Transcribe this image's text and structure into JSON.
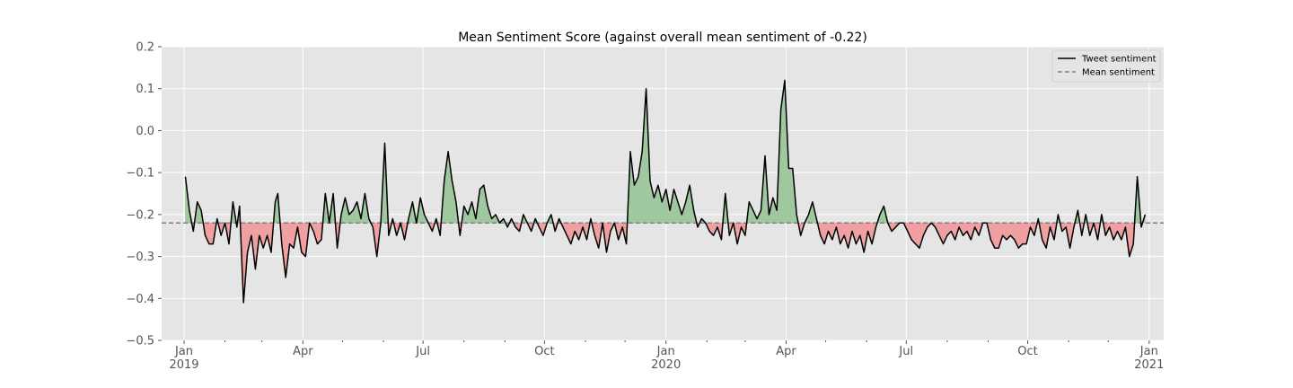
{
  "chart_data": {
    "type": "line",
    "title": "Mean Sentiment Score (against overall mean sentiment of -0.22)",
    "xlabel": "",
    "ylabel": "",
    "mean": -0.22,
    "xlim": [
      "2018-12-15",
      "2021-01-12"
    ],
    "ylim": [
      -0.5,
      0.2
    ],
    "grid": true,
    "legend_placement": "top-right",
    "colors": {
      "line": "#000000",
      "mean_line": "#808080",
      "above_fill": "#9fc89f",
      "below_fill": "#f0a0a0",
      "plot_bg": "#e5e5e5"
    },
    "y_ticks": [
      {
        "value": 0.2,
        "label": "0.2"
      },
      {
        "value": 0.1,
        "label": "0.1"
      },
      {
        "value": 0.0,
        "label": "0.0"
      },
      {
        "value": -0.1,
        "label": "−0.1"
      },
      {
        "value": -0.2,
        "label": "−0.2"
      },
      {
        "value": -0.3,
        "label": "−0.3"
      },
      {
        "value": -0.4,
        "label": "−0.4"
      },
      {
        "value": -0.5,
        "label": "−0.5"
      }
    ],
    "x_ticks": [
      {
        "date": "2019-01-01",
        "label": "Jan",
        "sublabel": "2019"
      },
      {
        "date": "2019-04-01",
        "label": "Apr",
        "sublabel": ""
      },
      {
        "date": "2019-07-01",
        "label": "Jul",
        "sublabel": ""
      },
      {
        "date": "2019-10-01",
        "label": "Oct",
        "sublabel": ""
      },
      {
        "date": "2020-01-01",
        "label": "Jan",
        "sublabel": "2020"
      },
      {
        "date": "2020-04-01",
        "label": "Apr",
        "sublabel": ""
      },
      {
        "date": "2020-07-01",
        "label": "Jul",
        "sublabel": ""
      },
      {
        "date": "2020-10-01",
        "label": "Oct",
        "sublabel": ""
      },
      {
        "date": "2021-01-01",
        "label": "Jan",
        "sublabel": "2021"
      }
    ],
    "x_minor_ticks": [
      "2018-12-01",
      "2019-02-01",
      "2019-03-01",
      "2019-05-01",
      "2019-06-01",
      "2019-08-01",
      "2019-09-01",
      "2019-11-01",
      "2019-12-01",
      "2020-02-01",
      "2020-03-01",
      "2020-05-01",
      "2020-06-01",
      "2020-08-01",
      "2020-09-01",
      "2020-11-01",
      "2020-12-01",
      "2021-02-01"
    ],
    "series": [
      {
        "name": "Tweet sentiment",
        "points": [
          [
            "2019-01-02",
            -0.11
          ],
          [
            "2019-01-05",
            -0.19
          ],
          [
            "2019-01-08",
            -0.24
          ],
          [
            "2019-01-11",
            -0.17
          ],
          [
            "2019-01-14",
            -0.19
          ],
          [
            "2019-01-17",
            -0.25
          ],
          [
            "2019-01-20",
            -0.27
          ],
          [
            "2019-01-23",
            -0.27
          ],
          [
            "2019-01-26",
            -0.21
          ],
          [
            "2019-01-29",
            -0.25
          ],
          [
            "2019-02-01",
            -0.22
          ],
          [
            "2019-02-04",
            -0.27
          ],
          [
            "2019-02-07",
            -0.17
          ],
          [
            "2019-02-10",
            -0.23
          ],
          [
            "2019-02-12",
            -0.18
          ],
          [
            "2019-02-15",
            -0.41
          ],
          [
            "2019-02-18",
            -0.29
          ],
          [
            "2019-02-21",
            -0.25
          ],
          [
            "2019-02-24",
            -0.33
          ],
          [
            "2019-02-27",
            -0.25
          ],
          [
            "2019-03-02",
            -0.28
          ],
          [
            "2019-03-05",
            -0.25
          ],
          [
            "2019-03-08",
            -0.29
          ],
          [
            "2019-03-11",
            -0.17
          ],
          [
            "2019-03-13",
            -0.15
          ],
          [
            "2019-03-16",
            -0.27
          ],
          [
            "2019-03-19",
            -0.35
          ],
          [
            "2019-03-22",
            -0.27
          ],
          [
            "2019-03-25",
            -0.28
          ],
          [
            "2019-03-28",
            -0.23
          ],
          [
            "2019-03-31",
            -0.29
          ],
          [
            "2019-04-03",
            -0.3
          ],
          [
            "2019-04-06",
            -0.22
          ],
          [
            "2019-04-09",
            -0.24
          ],
          [
            "2019-04-12",
            -0.27
          ],
          [
            "2019-04-15",
            -0.26
          ],
          [
            "2019-04-18",
            -0.15
          ],
          [
            "2019-04-21",
            -0.22
          ],
          [
            "2019-04-24",
            -0.15
          ],
          [
            "2019-04-27",
            -0.28
          ],
          [
            "2019-04-30",
            -0.2
          ],
          [
            "2019-05-03",
            -0.16
          ],
          [
            "2019-05-06",
            -0.2
          ],
          [
            "2019-05-09",
            -0.19
          ],
          [
            "2019-05-12",
            -0.17
          ],
          [
            "2019-05-15",
            -0.21
          ],
          [
            "2019-05-18",
            -0.15
          ],
          [
            "2019-05-21",
            -0.21
          ],
          [
            "2019-05-24",
            -0.23
          ],
          [
            "2019-05-27",
            -0.3
          ],
          [
            "2019-05-30",
            -0.22
          ],
          [
            "2019-06-02",
            -0.03
          ],
          [
            "2019-06-05",
            -0.25
          ],
          [
            "2019-06-08",
            -0.21
          ],
          [
            "2019-06-11",
            -0.25
          ],
          [
            "2019-06-14",
            -0.22
          ],
          [
            "2019-06-17",
            -0.26
          ],
          [
            "2019-06-20",
            -0.21
          ],
          [
            "2019-06-23",
            -0.17
          ],
          [
            "2019-06-26",
            -0.22
          ],
          [
            "2019-06-29",
            -0.16
          ],
          [
            "2019-07-02",
            -0.2
          ],
          [
            "2019-07-05",
            -0.22
          ],
          [
            "2019-07-08",
            -0.24
          ],
          [
            "2019-07-11",
            -0.21
          ],
          [
            "2019-07-14",
            -0.25
          ],
          [
            "2019-07-17",
            -0.12
          ],
          [
            "2019-07-20",
            -0.05
          ],
          [
            "2019-07-23",
            -0.12
          ],
          [
            "2019-07-26",
            -0.17
          ],
          [
            "2019-07-29",
            -0.25
          ],
          [
            "2019-08-01",
            -0.18
          ],
          [
            "2019-08-04",
            -0.2
          ],
          [
            "2019-08-07",
            -0.17
          ],
          [
            "2019-08-10",
            -0.21
          ],
          [
            "2019-08-13",
            -0.14
          ],
          [
            "2019-08-16",
            -0.13
          ],
          [
            "2019-08-19",
            -0.18
          ],
          [
            "2019-08-22",
            -0.21
          ],
          [
            "2019-08-25",
            -0.2
          ],
          [
            "2019-08-28",
            -0.22
          ],
          [
            "2019-08-31",
            -0.21
          ],
          [
            "2019-09-03",
            -0.23
          ],
          [
            "2019-09-06",
            -0.21
          ],
          [
            "2019-09-09",
            -0.23
          ],
          [
            "2019-09-12",
            -0.24
          ],
          [
            "2019-09-15",
            -0.2
          ],
          [
            "2019-09-18",
            -0.22
          ],
          [
            "2019-09-21",
            -0.24
          ],
          [
            "2019-09-24",
            -0.21
          ],
          [
            "2019-09-27",
            -0.23
          ],
          [
            "2019-09-30",
            -0.25
          ],
          [
            "2019-10-03",
            -0.22
          ],
          [
            "2019-10-06",
            -0.2
          ],
          [
            "2019-10-09",
            -0.24
          ],
          [
            "2019-10-12",
            -0.21
          ],
          [
            "2019-10-15",
            -0.23
          ],
          [
            "2019-10-18",
            -0.25
          ],
          [
            "2019-10-21",
            -0.27
          ],
          [
            "2019-10-24",
            -0.24
          ],
          [
            "2019-10-27",
            -0.26
          ],
          [
            "2019-10-30",
            -0.23
          ],
          [
            "2019-11-02",
            -0.26
          ],
          [
            "2019-11-05",
            -0.21
          ],
          [
            "2019-11-08",
            -0.25
          ],
          [
            "2019-11-11",
            -0.28
          ],
          [
            "2019-11-14",
            -0.22
          ],
          [
            "2019-11-17",
            -0.29
          ],
          [
            "2019-11-20",
            -0.24
          ],
          [
            "2019-11-23",
            -0.22
          ],
          [
            "2019-11-26",
            -0.26
          ],
          [
            "2019-11-29",
            -0.23
          ],
          [
            "2019-12-02",
            -0.27
          ],
          [
            "2019-12-05",
            -0.05
          ],
          [
            "2019-12-08",
            -0.13
          ],
          [
            "2019-12-11",
            -0.11
          ],
          [
            "2019-12-14",
            -0.05
          ],
          [
            "2019-12-17",
            0.1
          ],
          [
            "2019-12-20",
            -0.12
          ],
          [
            "2019-12-23",
            -0.16
          ],
          [
            "2019-12-26",
            -0.13
          ],
          [
            "2019-12-29",
            -0.17
          ],
          [
            "2020-01-01",
            -0.14
          ],
          [
            "2020-01-04",
            -0.19
          ],
          [
            "2020-01-07",
            -0.14
          ],
          [
            "2020-01-10",
            -0.17
          ],
          [
            "2020-01-13",
            -0.2
          ],
          [
            "2020-01-16",
            -0.17
          ],
          [
            "2020-01-19",
            -0.13
          ],
          [
            "2020-01-22",
            -0.19
          ],
          [
            "2020-01-25",
            -0.23
          ],
          [
            "2020-01-28",
            -0.21
          ],
          [
            "2020-01-31",
            -0.22
          ],
          [
            "2020-02-03",
            -0.24
          ],
          [
            "2020-02-06",
            -0.25
          ],
          [
            "2020-02-09",
            -0.23
          ],
          [
            "2020-02-12",
            -0.26
          ],
          [
            "2020-02-15",
            -0.15
          ],
          [
            "2020-02-18",
            -0.25
          ],
          [
            "2020-02-21",
            -0.22
          ],
          [
            "2020-02-24",
            -0.27
          ],
          [
            "2020-02-27",
            -0.23
          ],
          [
            "2020-03-01",
            -0.25
          ],
          [
            "2020-03-04",
            -0.17
          ],
          [
            "2020-03-07",
            -0.19
          ],
          [
            "2020-03-10",
            -0.21
          ],
          [
            "2020-03-13",
            -0.19
          ],
          [
            "2020-03-16",
            -0.06
          ],
          [
            "2020-03-19",
            -0.2
          ],
          [
            "2020-03-22",
            -0.16
          ],
          [
            "2020-03-25",
            -0.19
          ],
          [
            "2020-03-28",
            0.05
          ],
          [
            "2020-03-31",
            0.12
          ],
          [
            "2020-04-03",
            -0.09
          ],
          [
            "2020-04-06",
            -0.09
          ],
          [
            "2020-04-09",
            -0.2
          ],
          [
            "2020-04-12",
            -0.25
          ],
          [
            "2020-04-15",
            -0.22
          ],
          [
            "2020-04-18",
            -0.2
          ],
          [
            "2020-04-21",
            -0.17
          ],
          [
            "2020-04-24",
            -0.21
          ],
          [
            "2020-04-27",
            -0.25
          ],
          [
            "2020-04-30",
            -0.27
          ],
          [
            "2020-05-03",
            -0.24
          ],
          [
            "2020-05-06",
            -0.26
          ],
          [
            "2020-05-09",
            -0.23
          ],
          [
            "2020-05-12",
            -0.27
          ],
          [
            "2020-05-15",
            -0.25
          ],
          [
            "2020-05-18",
            -0.28
          ],
          [
            "2020-05-21",
            -0.24
          ],
          [
            "2020-05-24",
            -0.27
          ],
          [
            "2020-05-27",
            -0.25
          ],
          [
            "2020-05-30",
            -0.29
          ],
          [
            "2020-06-02",
            -0.24
          ],
          [
            "2020-06-05",
            -0.27
          ],
          [
            "2020-06-08",
            -0.23
          ],
          [
            "2020-06-11",
            -0.2
          ],
          [
            "2020-06-14",
            -0.18
          ],
          [
            "2020-06-17",
            -0.22
          ],
          [
            "2020-06-20",
            -0.24
          ],
          [
            "2020-06-23",
            -0.23
          ],
          [
            "2020-06-26",
            -0.22
          ],
          [
            "2020-06-29",
            -0.22
          ],
          [
            "2020-07-02",
            -0.24
          ],
          [
            "2020-07-05",
            -0.26
          ],
          [
            "2020-07-08",
            -0.27
          ],
          [
            "2020-07-11",
            -0.28
          ],
          [
            "2020-07-14",
            -0.25
          ],
          [
            "2020-07-17",
            -0.23
          ],
          [
            "2020-07-20",
            -0.22
          ],
          [
            "2020-07-23",
            -0.23
          ],
          [
            "2020-07-26",
            -0.25
          ],
          [
            "2020-07-29",
            -0.27
          ],
          [
            "2020-08-01",
            -0.25
          ],
          [
            "2020-08-04",
            -0.24
          ],
          [
            "2020-08-07",
            -0.26
          ],
          [
            "2020-08-10",
            -0.23
          ],
          [
            "2020-08-13",
            -0.25
          ],
          [
            "2020-08-16",
            -0.24
          ],
          [
            "2020-08-19",
            -0.26
          ],
          [
            "2020-08-22",
            -0.23
          ],
          [
            "2020-08-25",
            -0.25
          ],
          [
            "2020-08-28",
            -0.22
          ],
          [
            "2020-08-31",
            -0.22
          ],
          [
            "2020-09-03",
            -0.26
          ],
          [
            "2020-09-06",
            -0.28
          ],
          [
            "2020-09-09",
            -0.28
          ],
          [
            "2020-09-12",
            -0.25
          ],
          [
            "2020-09-15",
            -0.26
          ],
          [
            "2020-09-18",
            -0.25
          ],
          [
            "2020-09-21",
            -0.26
          ],
          [
            "2020-09-24",
            -0.28
          ],
          [
            "2020-09-27",
            -0.27
          ],
          [
            "2020-09-30",
            -0.27
          ],
          [
            "2020-10-03",
            -0.23
          ],
          [
            "2020-10-06",
            -0.25
          ],
          [
            "2020-10-09",
            -0.21
          ],
          [
            "2020-10-12",
            -0.26
          ],
          [
            "2020-10-15",
            -0.28
          ],
          [
            "2020-10-18",
            -0.23
          ],
          [
            "2020-10-21",
            -0.26
          ],
          [
            "2020-10-24",
            -0.2
          ],
          [
            "2020-10-27",
            -0.24
          ],
          [
            "2020-10-30",
            -0.23
          ],
          [
            "2020-11-02",
            -0.28
          ],
          [
            "2020-11-05",
            -0.23
          ],
          [
            "2020-11-08",
            -0.19
          ],
          [
            "2020-11-11",
            -0.25
          ],
          [
            "2020-11-14",
            -0.2
          ],
          [
            "2020-11-17",
            -0.25
          ],
          [
            "2020-11-20",
            -0.22
          ],
          [
            "2020-11-23",
            -0.26
          ],
          [
            "2020-11-26",
            -0.2
          ],
          [
            "2020-11-29",
            -0.25
          ],
          [
            "2020-12-02",
            -0.23
          ],
          [
            "2020-12-05",
            -0.26
          ],
          [
            "2020-12-08",
            -0.24
          ],
          [
            "2020-12-11",
            -0.26
          ],
          [
            "2020-12-14",
            -0.23
          ],
          [
            "2020-12-17",
            -0.3
          ],
          [
            "2020-12-20",
            -0.27
          ],
          [
            "2020-12-23",
            -0.11
          ],
          [
            "2020-12-26",
            -0.23
          ],
          [
            "2020-12-29",
            -0.2
          ]
        ]
      },
      {
        "name": "Mean sentiment",
        "value": -0.22
      }
    ]
  }
}
